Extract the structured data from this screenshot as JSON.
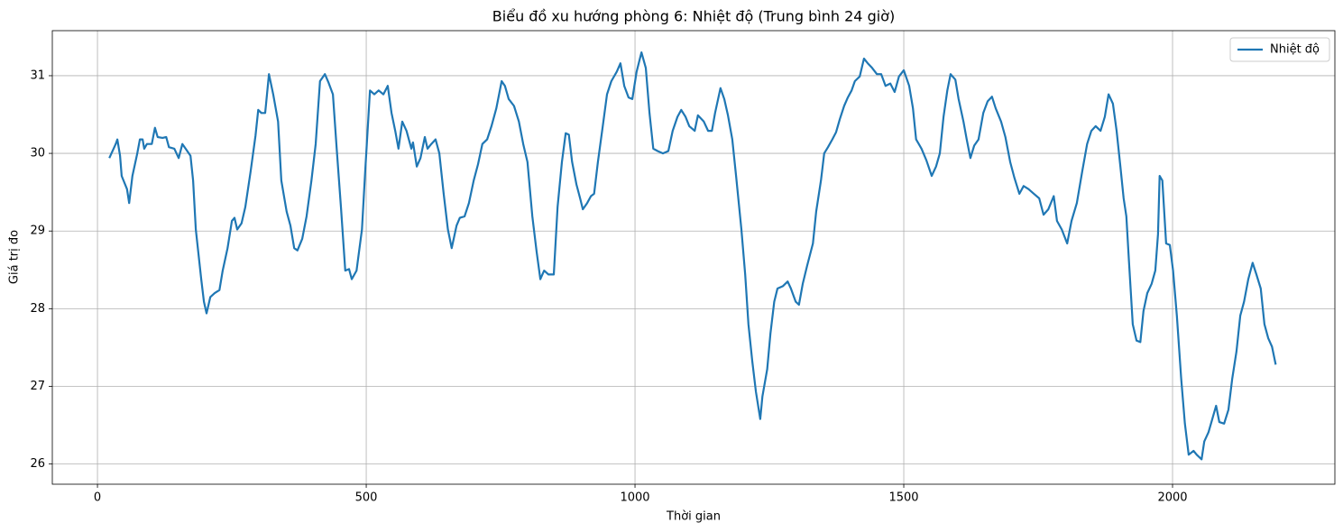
{
  "chart_data": {
    "type": "line",
    "title": "Biểu đồ xu hướng phòng 6: Nhiệt độ (Trung bình 24 giờ)",
    "x_label": "Thời gian",
    "y_label": "Giá trị đo",
    "x": [
      22,
      34,
      37,
      42,
      45,
      55,
      59,
      65,
      74,
      79,
      84,
      87,
      92,
      101,
      107,
      112,
      121,
      128,
      133,
      143,
      151,
      158,
      164,
      173,
      178,
      183,
      193,
      198,
      203,
      210,
      218,
      227,
      233,
      242,
      250,
      255,
      260,
      268,
      275,
      285,
      294,
      299,
      305,
      312,
      319,
      327,
      336,
      342,
      352,
      359,
      366,
      372,
      381,
      389,
      398,
      406,
      414,
      423,
      430,
      438,
      445,
      453,
      461,
      468,
      473,
      482,
      492,
      498,
      507,
      515,
      523,
      532,
      540,
      547,
      554,
      560,
      567,
      575,
      584,
      587,
      594,
      601,
      609,
      614,
      621,
      629,
      636,
      644,
      652,
      659,
      668,
      674,
      683,
      691,
      700,
      708,
      716,
      725,
      733,
      742,
      752,
      758,
      765,
      775,
      784,
      792,
      800,
      809,
      817,
      824,
      831,
      839,
      849,
      856,
      864,
      871,
      877,
      883,
      891,
      898,
      903,
      911,
      918,
      924,
      931,
      940,
      948,
      956,
      966,
      973,
      980,
      988,
      995,
      1003,
      1012,
      1020,
      1027,
      1034,
      1042,
      1052,
      1062,
      1070,
      1079,
      1086,
      1094,
      1101,
      1111,
      1117,
      1128,
      1136,
      1143,
      1149,
      1159,
      1166,
      1173,
      1181,
      1188,
      1198,
      1205,
      1211,
      1218,
      1225,
      1233,
      1237,
      1246,
      1252,
      1259,
      1265,
      1275,
      1284,
      1290,
      1299,
      1305,
      1312,
      1320,
      1331,
      1337,
      1346,
      1352,
      1359,
      1367,
      1374,
      1381,
      1389,
      1396,
      1403,
      1409,
      1418,
      1426,
      1433,
      1441,
      1450,
      1458,
      1466,
      1475,
      1483,
      1491,
      1500,
      1510,
      1517,
      1523,
      1533,
      1542,
      1552,
      1560,
      1567,
      1574,
      1581,
      1587,
      1596,
      1602,
      1611,
      1617,
      1624,
      1631,
      1639,
      1648,
      1656,
      1664,
      1671,
      1681,
      1689,
      1698,
      1706,
      1715,
      1723,
      1732,
      1742,
      1752,
      1760,
      1769,
      1779,
      1785,
      1794,
      1804,
      1812,
      1822,
      1832,
      1841,
      1849,
      1857,
      1866,
      1874,
      1881,
      1889,
      1896,
      1903,
      1909,
      1914,
      1919,
      1926,
      1933,
      1940,
      1946,
      1953,
      1961,
      1968,
      1973,
      1976,
      1981,
      1988,
      1995,
      2001,
      2008,
      2016,
      2023,
      2030,
      2039,
      2045,
      2054,
      2059,
      2067,
      2074,
      2081,
      2087,
      2096,
      2104,
      2111,
      2119,
      2126,
      2133,
      2141,
      2149,
      2156,
      2164,
      2171,
      2178,
      2185,
      2192
    ],
    "series": [
      {
        "name": "Nhiệt độ",
        "color": "#1f77b4",
        "values": [
          29.94,
          30.12,
          30.18,
          29.97,
          29.71,
          29.54,
          29.36,
          29.71,
          30.0,
          30.18,
          30.18,
          30.06,
          30.12,
          30.12,
          30.33,
          30.21,
          30.2,
          30.21,
          30.08,
          30.06,
          29.94,
          30.12,
          30.06,
          29.97,
          29.65,
          29.02,
          28.38,
          28.09,
          27.94,
          28.15,
          28.2,
          28.24,
          28.49,
          28.78,
          29.13,
          29.17,
          29.02,
          29.1,
          29.31,
          29.77,
          30.23,
          30.56,
          30.52,
          30.52,
          31.02,
          30.76,
          30.41,
          29.65,
          29.25,
          29.07,
          28.78,
          28.75,
          28.9,
          29.19,
          29.65,
          30.12,
          30.93,
          31.02,
          30.91,
          30.76,
          30.06,
          29.31,
          28.49,
          28.51,
          28.38,
          28.49,
          29.02,
          29.77,
          30.81,
          30.76,
          30.81,
          30.76,
          30.87,
          30.52,
          30.29,
          30.06,
          30.41,
          30.29,
          30.06,
          30.14,
          29.83,
          29.94,
          30.21,
          30.06,
          30.12,
          30.18,
          30.0,
          29.48,
          29.02,
          28.78,
          29.07,
          29.17,
          29.19,
          29.36,
          29.65,
          29.86,
          30.12,
          30.18,
          30.35,
          30.58,
          30.93,
          30.87,
          30.7,
          30.61,
          30.41,
          30.12,
          29.89,
          29.19,
          28.73,
          28.38,
          28.49,
          28.44,
          28.44,
          29.31,
          29.89,
          30.26,
          30.24,
          29.89,
          29.6,
          29.42,
          29.28,
          29.36,
          29.45,
          29.48,
          29.89,
          30.35,
          30.76,
          30.93,
          31.05,
          31.16,
          30.87,
          30.72,
          30.7,
          31.05,
          31.3,
          31.1,
          30.52,
          30.06,
          30.03,
          30.0,
          30.03,
          30.29,
          30.47,
          30.56,
          30.47,
          30.35,
          30.29,
          30.49,
          30.41,
          30.29,
          30.29,
          30.52,
          30.84,
          30.7,
          30.49,
          30.18,
          29.71,
          29.02,
          28.44,
          27.8,
          27.33,
          26.93,
          26.58,
          26.87,
          27.22,
          27.68,
          28.09,
          28.26,
          28.29,
          28.35,
          28.26,
          28.09,
          28.05,
          28.32,
          28.55,
          28.84,
          29.25,
          29.65,
          30.0,
          30.08,
          30.18,
          30.27,
          30.44,
          30.61,
          30.72,
          30.81,
          30.93,
          30.99,
          31.22,
          31.16,
          31.1,
          31.02,
          31.02,
          30.87,
          30.9,
          30.79,
          30.99,
          31.07,
          30.87,
          30.58,
          30.18,
          30.06,
          29.91,
          29.71,
          29.83,
          30.0,
          30.47,
          30.81,
          31.02,
          30.95,
          30.7,
          30.41,
          30.18,
          29.94,
          30.1,
          30.18,
          30.52,
          30.67,
          30.73,
          30.58,
          30.41,
          30.21,
          29.89,
          29.68,
          29.48,
          29.58,
          29.54,
          29.48,
          29.42,
          29.21,
          29.28,
          29.45,
          29.13,
          29.02,
          28.84,
          29.13,
          29.36,
          29.77,
          30.12,
          30.29,
          30.35,
          30.29,
          30.47,
          30.76,
          30.64,
          30.29,
          29.83,
          29.42,
          29.19,
          28.61,
          27.8,
          27.59,
          27.57,
          27.97,
          28.2,
          28.32,
          28.49,
          28.96,
          29.71,
          29.65,
          28.84,
          28.82,
          28.49,
          27.91,
          27.1,
          26.52,
          26.12,
          26.17,
          26.12,
          26.06,
          26.29,
          26.41,
          26.58,
          26.75,
          26.54,
          26.52,
          26.7,
          27.1,
          27.45,
          27.91,
          28.09,
          28.38,
          28.59,
          28.44,
          28.26,
          27.8,
          27.62,
          27.51,
          27.28
        ]
      }
    ],
    "xlim": [
      -84,
      2302
    ],
    "xticks": [
      0,
      500,
      1000,
      1500,
      2000
    ],
    "ylim": [
      25.74,
      31.58
    ],
    "yticks": [
      26,
      27,
      28,
      29,
      30,
      31
    ],
    "grid": true,
    "legend": "upper right"
  }
}
